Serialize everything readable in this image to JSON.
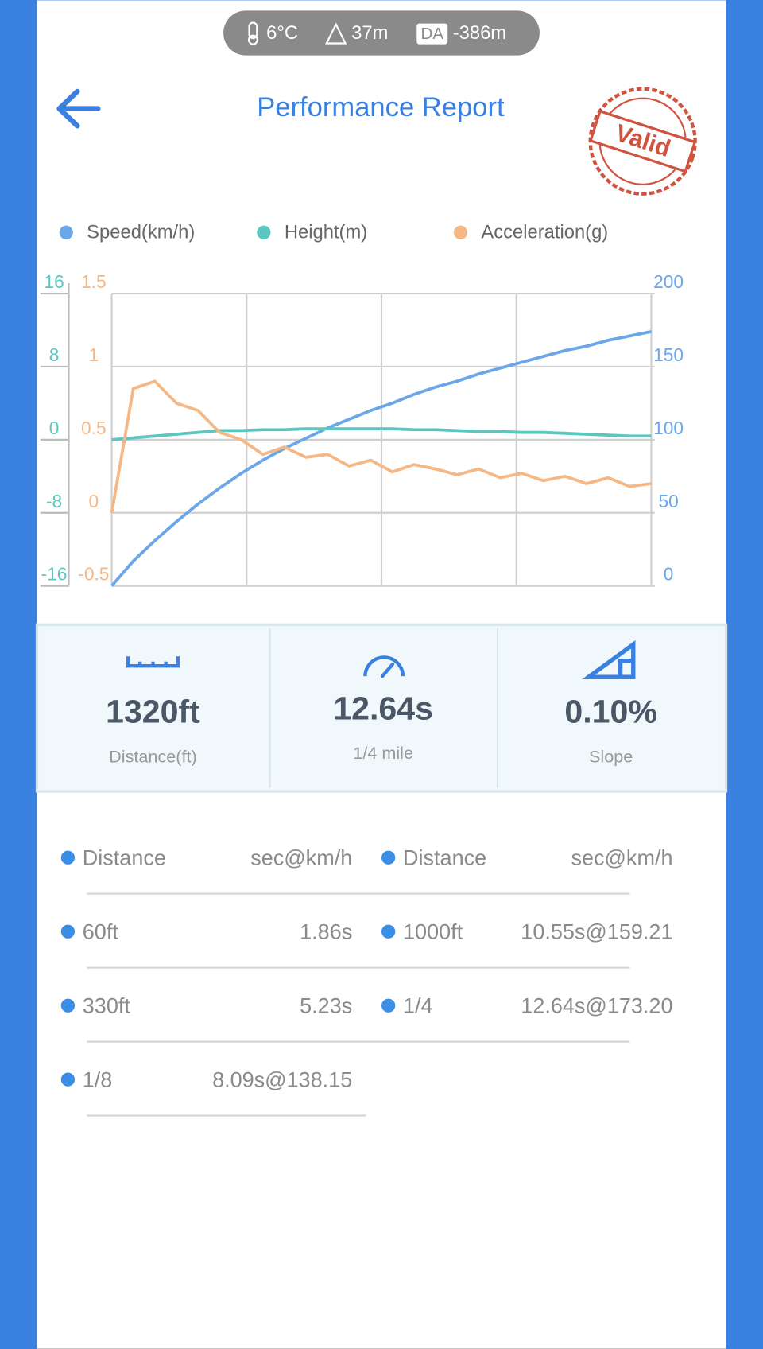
{
  "header": {
    "temperature": "6°C",
    "altitude": "37m",
    "da_badge": "DA",
    "density_altitude": "-386m",
    "title": "Performance Report",
    "stamp": "Valid"
  },
  "chart_data": {
    "type": "line",
    "series": [
      {
        "name": "Speed(km/h)",
        "color": "#6aa6e8",
        "axis": "y2",
        "values": [
          0,
          17,
          31,
          44,
          56,
          67,
          77,
          86,
          94,
          101,
          108,
          114,
          120,
          125,
          131,
          136,
          140,
          145,
          149,
          153,
          157,
          161,
          164,
          168,
          171,
          174
        ]
      },
      {
        "name": "Height(m)",
        "color": "#5cc6c0",
        "axis": "y3",
        "values": [
          0,
          0.2,
          0.4,
          0.6,
          0.8,
          1,
          1,
          1.1,
          1.1,
          1.2,
          1.2,
          1.2,
          1.2,
          1.2,
          1.1,
          1.1,
          1,
          0.9,
          0.9,
          0.8,
          0.8,
          0.7,
          0.6,
          0.5,
          0.4,
          0.4
        ]
      },
      {
        "name": "Acceleration(g)",
        "color": "#f5b884",
        "axis": "y",
        "values": [
          0,
          0.85,
          0.9,
          0.75,
          0.7,
          0.55,
          0.5,
          0.4,
          0.45,
          0.38,
          0.4,
          0.32,
          0.36,
          0.28,
          0.33,
          0.3,
          0.26,
          0.3,
          0.24,
          0.27,
          0.22,
          0.25,
          0.2,
          0.24,
          0.18,
          0.2
        ]
      }
    ],
    "ylim": [
      -0.5,
      1.5
    ],
    "yticks": [
      -0.5,
      0,
      0.5,
      1,
      1.5
    ],
    "y2lim": [
      0,
      200
    ],
    "y2ticks": [
      0,
      50,
      100,
      150,
      200
    ],
    "y3lim": [
      -16,
      16
    ],
    "y3ticks": [
      -16,
      -8,
      0,
      8,
      16
    ],
    "grid": true
  },
  "stats": [
    {
      "value": "1320ft",
      "label": "Distance(ft)"
    },
    {
      "value": "12.64s",
      "label": "1/4 mile"
    },
    {
      "value": "0.10%",
      "label": "Slope"
    }
  ],
  "table": {
    "left": [
      [
        "Distance",
        "sec@km/h"
      ],
      [
        "60ft",
        "1.86s"
      ],
      [
        "330ft",
        "5.23s"
      ],
      [
        "1/8",
        "8.09s@138.15"
      ]
    ],
    "right": [
      [
        "Distance",
        "sec@km/h"
      ],
      [
        "1000ft",
        "10.55s@159.21"
      ],
      [
        "1/4",
        "12.64s@173.20"
      ]
    ]
  }
}
